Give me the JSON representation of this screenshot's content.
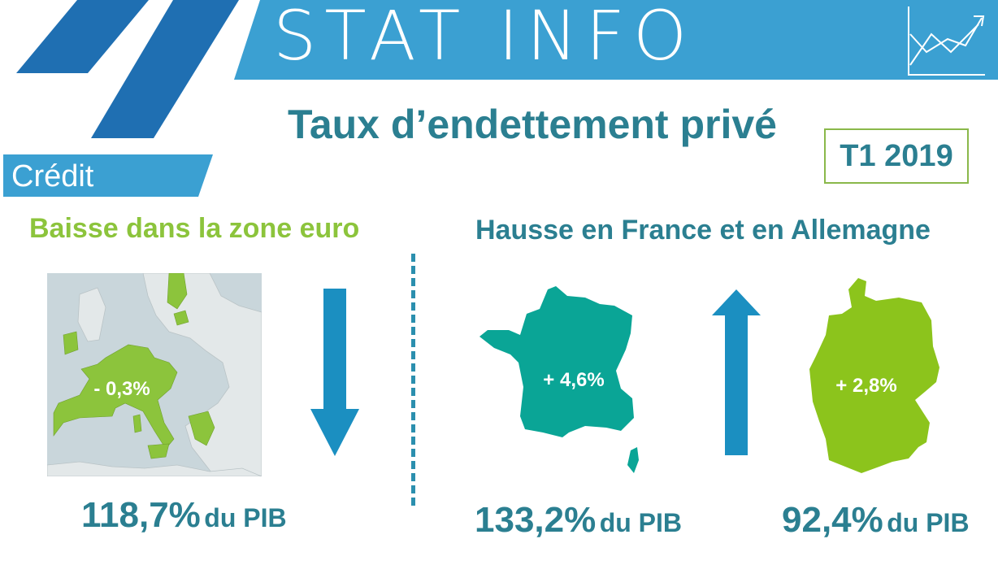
{
  "header": {
    "brand": "STAT INFO",
    "section_tab": "Crédit",
    "trend_icon": "line-chart-up-icon",
    "colors": {
      "banner": "#3ba0d2",
      "stripes": "#1f6fb2",
      "title": "#2b7f91"
    }
  },
  "title": "Taux d’endettement privé",
  "period": "T1 2019",
  "left_panel": {
    "heading": "Baisse dans la zone euro",
    "heading_color": "#8cc43c",
    "map_label": "- 0,3%",
    "arrow": "arrow-down-icon",
    "value": "118,7%",
    "unit": "du PIB"
  },
  "right_panel": {
    "heading": "Hausse en France et en Allemagne",
    "arrow": "arrow-up-icon",
    "france": {
      "label": "+ 4,6%",
      "value": "133,2%",
      "unit": "du PIB",
      "color": "#0aa596"
    },
    "germany": {
      "label": "+ 2,8%",
      "value": "92,4%",
      "unit": "du PIB",
      "color": "#8cc41c"
    }
  }
}
